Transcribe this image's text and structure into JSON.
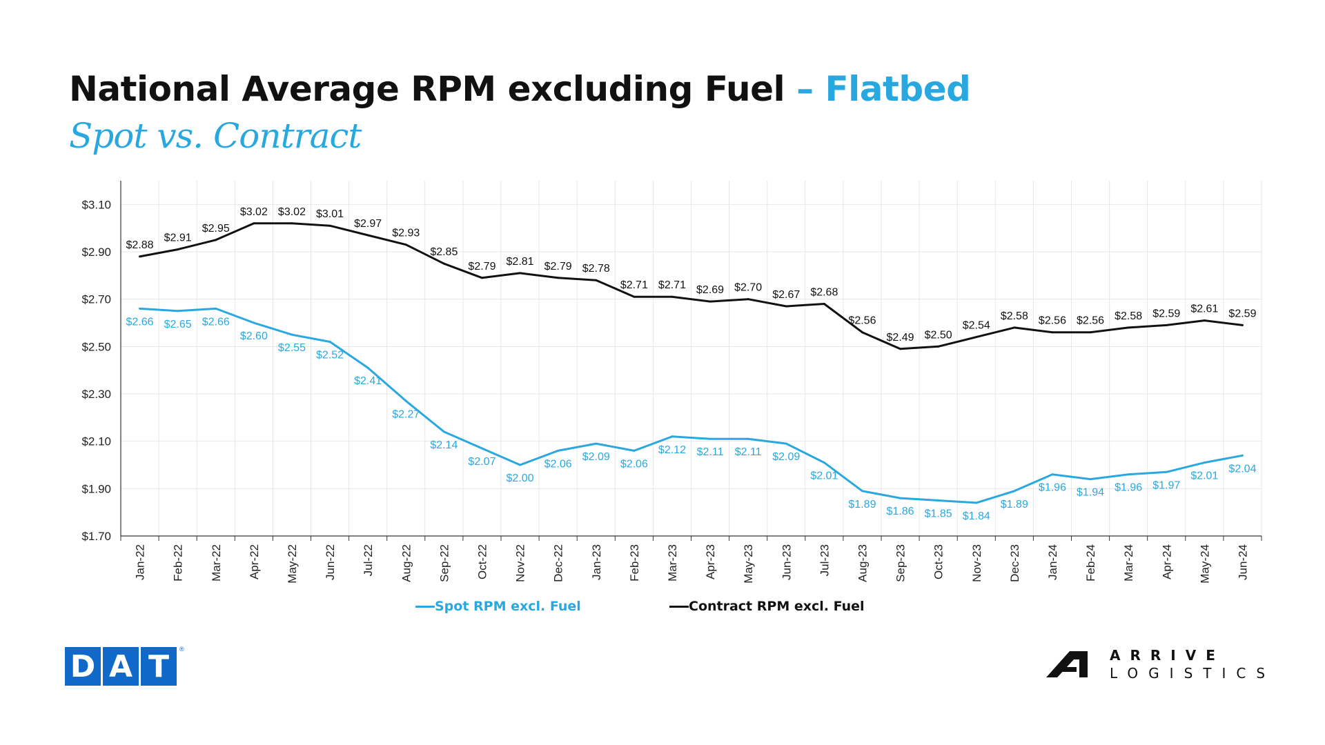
{
  "title": {
    "main": "National Average RPM excluding Fuel",
    "accent": " – Flatbed",
    "subtitle": "Spot vs. Contract"
  },
  "logos": {
    "dat": [
      "D",
      "A",
      "T"
    ],
    "dat_reg": "®",
    "arrive_word": "ARRIVE",
    "arrive_sub": "LOGISTICS"
  },
  "colors": {
    "spot": "#29a8e0",
    "contract": "#111111",
    "grid": "#e6e6e6",
    "axis": "#333333"
  },
  "chart_data": {
    "type": "line",
    "categories": [
      "Jan-22",
      "Feb-22",
      "Mar-22",
      "Apr-22",
      "May-22",
      "Jun-22",
      "Jul-22",
      "Aug-22",
      "Sep-22",
      "Oct-22",
      "Nov-22",
      "Dec-22",
      "Jan-23",
      "Feb-23",
      "Mar-23",
      "Apr-23",
      "May-23",
      "Jun-23",
      "Jul-23",
      "Aug-23",
      "Sep-23",
      "Oct-23",
      "Nov-23",
      "Dec-23",
      "Jan-24",
      "Feb-24",
      "Mar-24",
      "Apr-24",
      "May-24",
      "Jun-24"
    ],
    "series": [
      {
        "name": "Spot RPM excl. Fuel",
        "color": "#29a8e0",
        "values": [
          2.66,
          2.65,
          2.66,
          2.6,
          2.55,
          2.52,
          2.41,
          2.27,
          2.14,
          2.07,
          2.0,
          2.06,
          2.09,
          2.06,
          2.12,
          2.11,
          2.11,
          2.09,
          2.01,
          1.89,
          1.86,
          1.85,
          1.84,
          1.89,
          1.96,
          1.94,
          1.96,
          1.97,
          2.01,
          2.04
        ],
        "labels": [
          "$2.66",
          "$2.65",
          "$2.66",
          "$2.60",
          "$2.55",
          "$2.52",
          "$2.41",
          "$2.27",
          "$2.14",
          "$2.07",
          "$2.00",
          "$2.06",
          "$2.09",
          "$2.06",
          "$2.12",
          "$2.11",
          "$2.11",
          "$2.09",
          "$2.01",
          "$1.89",
          "$1.86",
          "$1.85",
          "$1.84",
          "$1.89",
          "$1.96",
          "$1.94",
          "$1.96",
          "$1.97",
          "$2.01",
          "$2.04"
        ]
      },
      {
        "name": "Contract RPM excl. Fuel",
        "color": "#111111",
        "values": [
          2.88,
          2.91,
          2.95,
          3.02,
          3.02,
          3.01,
          2.97,
          2.93,
          2.85,
          2.79,
          2.81,
          2.79,
          2.78,
          2.71,
          2.71,
          2.69,
          2.7,
          2.67,
          2.68,
          2.56,
          2.49,
          2.5,
          2.54,
          2.58,
          2.56,
          2.56,
          2.58,
          2.59,
          2.61,
          2.59
        ],
        "labels": [
          "$2.88",
          "$2.91",
          "$2.95",
          "$3.02",
          "$3.02",
          "$3.01",
          "$2.97",
          "$2.93",
          "$2.85",
          "$2.79",
          "$2.81",
          "$2.79",
          "$2.78",
          "$2.71",
          "$2.71",
          "$2.69",
          "$2.70",
          "$2.67",
          "$2.68",
          "$2.56",
          "$2.49",
          "$2.50",
          "$2.54",
          "$2.58",
          "$2.56",
          "$2.56",
          "$2.58",
          "$2.59",
          "$2.61",
          "$2.59"
        ]
      }
    ],
    "yticks": [
      1.7,
      1.9,
      2.1,
      2.3,
      2.5,
      2.7,
      2.9,
      3.1
    ],
    "ytick_labels": [
      "$1.70",
      "$1.90",
      "$2.10",
      "$2.30",
      "$2.50",
      "$2.70",
      "$2.90",
      "$3.10"
    ],
    "ylim": [
      1.7,
      3.2
    ],
    "grid": true,
    "legend": "bottom"
  }
}
